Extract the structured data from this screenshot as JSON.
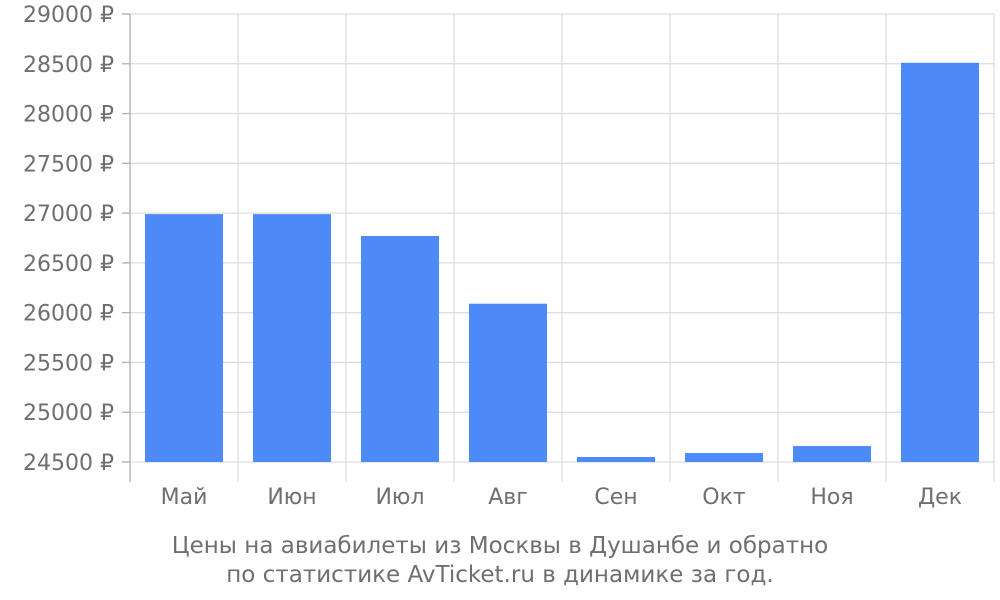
{
  "chart_data": {
    "type": "bar",
    "categories": [
      "Май",
      "Июн",
      "Июл",
      "Авг",
      "Сен",
      "Окт",
      "Ноя",
      "Дек"
    ],
    "values": [
      26990,
      26990,
      26770,
      26090,
      24550,
      24590,
      24660,
      28510
    ],
    "ylim": [
      24500,
      29000
    ],
    "yticks": [
      24500,
      25000,
      25500,
      26000,
      26500,
      27000,
      27500,
      28000,
      28500,
      29000
    ],
    "y_tick_suffix": " ₽",
    "grid": true,
    "bar_color": "#4d8af8",
    "caption_line1": "Цены на авиабилеты из Москвы в Душанбе и обратно",
    "caption_line2": "по статистике AvTicket.ru в динамике за год."
  }
}
